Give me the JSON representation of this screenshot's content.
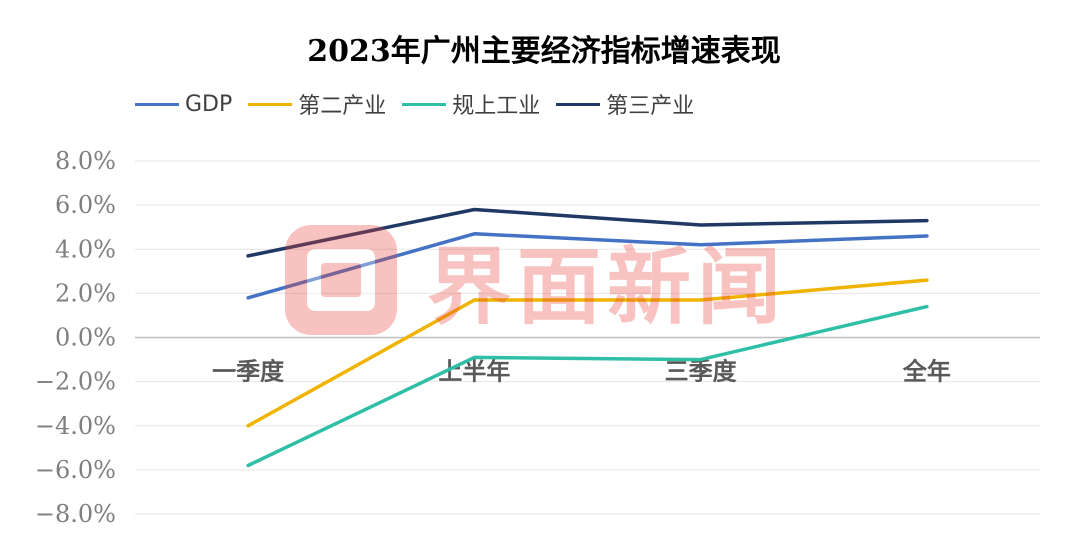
{
  "chart_data": {
    "type": "line",
    "title": "2023年广州主要经济指标增速表现",
    "categories": [
      "一季度",
      "上半年",
      "三季度",
      "全年"
    ],
    "series": [
      {
        "name": "GDP",
        "values": [
          1.8,
          4.7,
          4.2,
          4.6
        ],
        "color": "#4472c4"
      },
      {
        "name": "第二产业",
        "values": [
          -4.0,
          1.7,
          1.7,
          2.6
        ],
        "color": "#f0b400"
      },
      {
        "name": "规上工业",
        "values": [
          -5.8,
          -0.9,
          -1.0,
          1.4
        ],
        "color": "#2ebfa6"
      },
      {
        "name": "第三产业",
        "values": [
          3.7,
          5.8,
          5.1,
          5.3
        ],
        "color": "#203864"
      }
    ],
    "yticks": [
      "8.0%",
      "6.0%",
      "4.0%",
      "2.0%",
      "0.0%",
      "−2.0%",
      "−4.0%",
      "−6.0%",
      "−8.0%"
    ],
    "ylim": [
      -8,
      8
    ],
    "ystep": 2,
    "legend_position": "top-left",
    "grid": true
  },
  "watermark": {
    "text": "界面新闻",
    "color": "#e8443a",
    "icon": "jiemian-logo-icon"
  }
}
